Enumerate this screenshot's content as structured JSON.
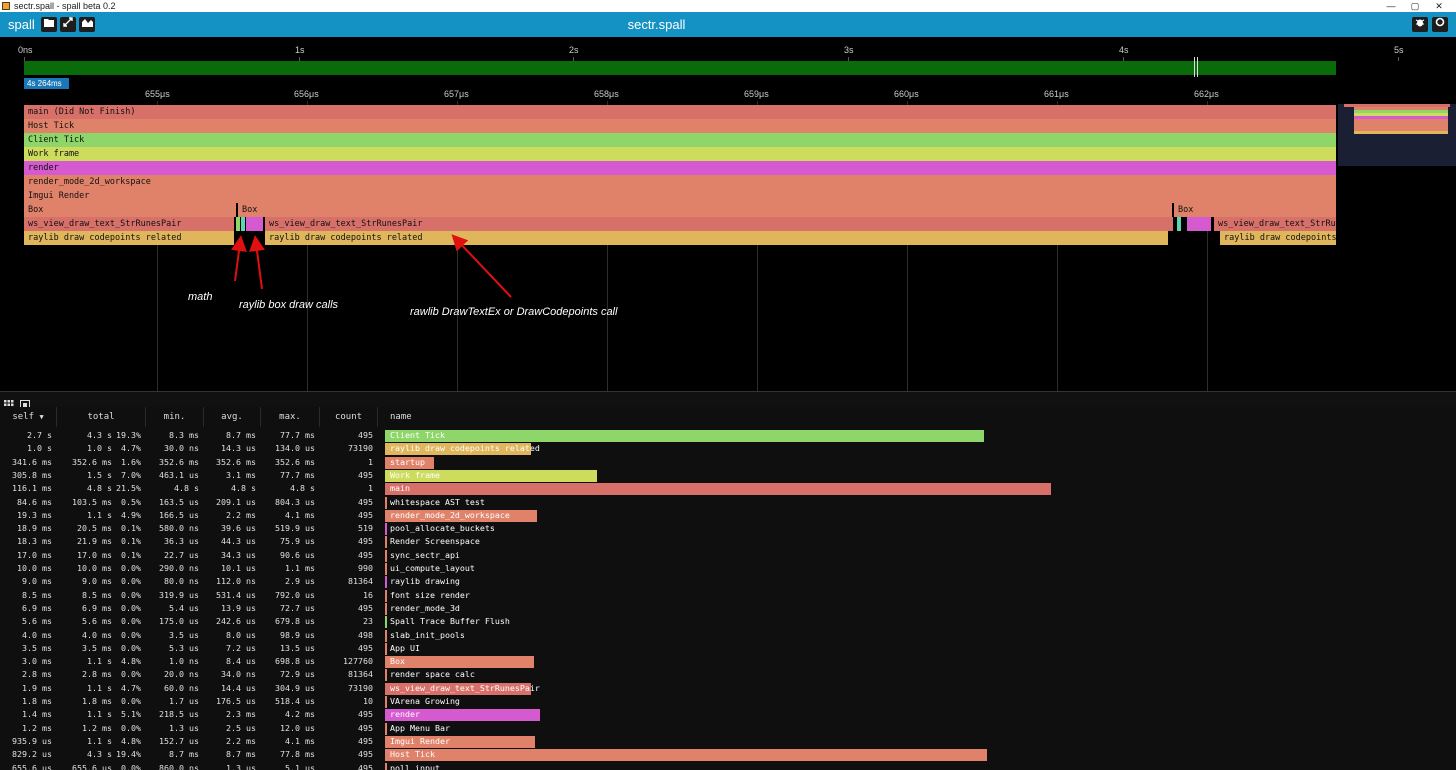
{
  "window": {
    "title": "sectr.spall - spall beta 0.2",
    "minimize": "—",
    "maximize": "▢",
    "close": "✕"
  },
  "app": {
    "name": "spall",
    "file_title": "sectr.spall"
  },
  "colors": {
    "accent": "#1592c4",
    "timeline_green": "#0a6b0a"
  },
  "timeline": {
    "top_ticks": [
      "0ns",
      "1s",
      "2s",
      "3s",
      "4s",
      "5s"
    ],
    "duration_badge": "4s 264ms",
    "mid_ticks": [
      "655μs",
      "656μs",
      "657μs",
      "658μs",
      "659μs",
      "660μs",
      "661μs",
      "662μs"
    ],
    "rows": [
      {
        "label": "main (Did Not Finish)",
        "color": "#d8706a"
      },
      {
        "label": "Host Tick",
        "color": "#e0826a"
      },
      {
        "label": "Client Tick",
        "color": "#8fd66a"
      },
      {
        "label": "Work frame",
        "color": "#cddc5c"
      },
      {
        "label": "render",
        "color": "#d55ad0"
      },
      {
        "label": "render_mode_2d_workspace",
        "color": "#e0826a"
      },
      {
        "label": "Imgui Render",
        "color": "#e0826a"
      }
    ],
    "box_row": {
      "label": "Box",
      "label_b": "Box",
      "label_c": "Box"
    },
    "ws_row": {
      "label_a": "ws_view_draw_text_StrRunesPair",
      "label_b": "ws_view_draw_text_StrRunesPair",
      "label_c": "ws_view_draw_text_StrRun…"
    },
    "raylib_row": {
      "label_a": "raylib draw codepoints related",
      "label_b": "raylib draw codepoints related",
      "label_c": "raylib draw codepoints…"
    },
    "annotations": {
      "math": "math",
      "box_calls": "raylib box draw calls",
      "text_call": "rawlib DrawTextEx or DrawCodepoints call"
    }
  },
  "stats": {
    "columns": {
      "self": "self",
      "total": "total",
      "min": "min.",
      "avg": "avg.",
      "max": "max.",
      "count": "count",
      "name": "name"
    },
    "rows": [
      {
        "self": "2.7 s",
        "total": "4.3 s",
        "pct": "19.3%",
        "min": "8.3 ms",
        "avg": "8.7 ms",
        "max": "77.7 ms",
        "count": "495",
        "name": "Client Tick",
        "bar": 0.565,
        "color": "#8fd66a"
      },
      {
        "self": "1.0 s",
        "total": "1.0 s",
        "pct": "4.7%",
        "min": "30.0 ns",
        "avg": "14.3 us",
        "max": "134.0 us",
        "count": "73190",
        "name": "raylib draw codepoints related",
        "bar": 0.138,
        "color": "#e0b65c"
      },
      {
        "self": "341.6 ms",
        "total": "352.6 ms",
        "pct": "1.6%",
        "min": "352.6 ms",
        "avg": "352.6 ms",
        "max": "352.6 ms",
        "count": "1",
        "name": "startup",
        "bar": 0.046,
        "color": "#e0826a"
      },
      {
        "self": "305.8 ms",
        "total": "1.5 s",
        "pct": "7.0%",
        "min": "463.1 us",
        "avg": "3.1 ms",
        "max": "77.7 ms",
        "count": "495",
        "name": "Work frame",
        "bar": 0.2,
        "color": "#cddc5c"
      },
      {
        "self": "116.1 ms",
        "total": "4.8 s",
        "pct": "21.5%",
        "min": "4.8 s",
        "avg": "4.8 s",
        "max": "4.8 s",
        "count": "1",
        "name": "main",
        "bar": 0.628,
        "color": "#d8706a"
      },
      {
        "self": "84.6 ms",
        "total": "103.5 ms",
        "pct": "0.5%",
        "min": "163.5 us",
        "avg": "209.1 us",
        "max": "804.3 us",
        "count": "495",
        "name": "whitespace AST test",
        "bar": 0.0,
        "color": "#e0826a"
      },
      {
        "self": "19.3 ms",
        "total": "1.1 s",
        "pct": "4.9%",
        "min": "166.5 us",
        "avg": "2.2 ms",
        "max": "4.1 ms",
        "count": "495",
        "name": "render_mode_2d_workspace",
        "bar": 0.143,
        "color": "#e0826a"
      },
      {
        "self": "18.9 ms",
        "total": "20.5 ms",
        "pct": "0.1%",
        "min": "580.0 ns",
        "avg": "39.6 us",
        "max": "519.9 us",
        "count": "519",
        "name": "pool_allocate_buckets",
        "bar": 0.002,
        "color": "#d55ad0"
      },
      {
        "self": "18.3 ms",
        "total": "21.9 ms",
        "pct": "0.1%",
        "min": "36.3 us",
        "avg": "44.3 us",
        "max": "75.9 us",
        "count": "495",
        "name": "Render Screenspace",
        "bar": 0.002,
        "color": "#e0826a"
      },
      {
        "self": "17.0 ms",
        "total": "17.0 ms",
        "pct": "0.1%",
        "min": "22.7 us",
        "avg": "34.3 us",
        "max": "90.6 us",
        "count": "495",
        "name": "sync_sectr_api",
        "bar": 0.002,
        "color": "#e0826a"
      },
      {
        "self": "10.0 ms",
        "total": "10.0 ms",
        "pct": "0.0%",
        "min": "290.0 ns",
        "avg": "10.1 us",
        "max": "1.1 ms",
        "count": "990",
        "name": "ui_compute_layout",
        "bar": 0.001,
        "color": "#e0826a"
      },
      {
        "self": "9.0 ms",
        "total": "9.0 ms",
        "pct": "0.0%",
        "min": "80.0 ns",
        "avg": "112.0 ns",
        "max": "2.9 us",
        "count": "81364",
        "name": "raylib drawing",
        "bar": 0.001,
        "color": "#d55ad0"
      },
      {
        "self": "8.5 ms",
        "total": "8.5 ms",
        "pct": "0.0%",
        "min": "319.9 us",
        "avg": "531.4 us",
        "max": "792.0 us",
        "count": "16",
        "name": "font size render",
        "bar": 0.001,
        "color": "#e0826a"
      },
      {
        "self": "6.9 ms",
        "total": "6.9 ms",
        "pct": "0.0%",
        "min": "5.4 us",
        "avg": "13.9 us",
        "max": "72.7 us",
        "count": "495",
        "name": "render_mode_3d",
        "bar": 0.001,
        "color": "#e0826a"
      },
      {
        "self": "5.6 ms",
        "total": "5.6 ms",
        "pct": "0.0%",
        "min": "175.0 us",
        "avg": "242.6 us",
        "max": "679.8 us",
        "count": "23",
        "name": "Spall Trace Buffer Flush",
        "bar": 0.001,
        "color": "#8fd66a"
      },
      {
        "self": "4.0 ms",
        "total": "4.0 ms",
        "pct": "0.0%",
        "min": "3.5 us",
        "avg": "8.0 us",
        "max": "98.9 us",
        "count": "498",
        "name": "slab_init_pools",
        "bar": 0.001,
        "color": "#e0826a"
      },
      {
        "self": "3.5 ms",
        "total": "3.5 ms",
        "pct": "0.0%",
        "min": "5.3 us",
        "avg": "7.2 us",
        "max": "13.5 us",
        "count": "495",
        "name": "App UI",
        "bar": 0.0,
        "color": "#e0826a"
      },
      {
        "self": "3.0 ms",
        "total": "1.1 s",
        "pct": "4.8%",
        "min": "1.0 ns",
        "avg": "8.4 us",
        "max": "698.8 us",
        "count": "127760",
        "name": "Box",
        "bar": 0.14,
        "color": "#e0826a"
      },
      {
        "self": "2.8 ms",
        "total": "2.8 ms",
        "pct": "0.0%",
        "min": "20.0 ns",
        "avg": "34.0 ns",
        "max": "72.9 us",
        "count": "81364",
        "name": "render space calc",
        "bar": 0.0,
        "color": "#e0826a"
      },
      {
        "self": "1.9 ms",
        "total": "1.1 s",
        "pct": "4.7%",
        "min": "60.0 ns",
        "avg": "14.4 us",
        "max": "304.9 us",
        "count": "73190",
        "name": "ws_view_draw_text_StrRunesPair",
        "bar": 0.138,
        "color": "#d8706a"
      },
      {
        "self": "1.8 ms",
        "total": "1.8 ms",
        "pct": "0.0%",
        "min": "1.7 us",
        "avg": "176.5 us",
        "max": "518.4 us",
        "count": "10",
        "name": "VArena Growing",
        "bar": 0.0,
        "color": "#e0826a"
      },
      {
        "self": "1.4 ms",
        "total": "1.1 s",
        "pct": "5.1%",
        "min": "218.5 us",
        "avg": "2.3 ms",
        "max": "4.2 ms",
        "count": "495",
        "name": "render",
        "bar": 0.146,
        "color": "#d55ad0"
      },
      {
        "self": "1.2 ms",
        "total": "1.2 ms",
        "pct": "0.0%",
        "min": "1.3 us",
        "avg": "2.5 us",
        "max": "12.0 us",
        "count": "495",
        "name": "App Menu Bar",
        "bar": 0.0,
        "color": "#e0826a"
      },
      {
        "self": "935.9 us",
        "total": "1.1 s",
        "pct": "4.8%",
        "min": "152.7 us",
        "avg": "2.2 ms",
        "max": "4.1 ms",
        "count": "495",
        "name": "Imgui Render",
        "bar": 0.141,
        "color": "#e0826a"
      },
      {
        "self": "829.2 us",
        "total": "4.3 s",
        "pct": "19.4%",
        "min": "8.7 ms",
        "avg": "8.7 ms",
        "max": "77.8 ms",
        "count": "495",
        "name": "Host Tick",
        "bar": 0.567,
        "color": "#e0826a"
      },
      {
        "self": "655.6 us",
        "total": "655.6 us",
        "pct": "0.0%",
        "min": "860.0 ns",
        "avg": "1.3 us",
        "max": "5.1 us",
        "count": "495",
        "name": "poll_input",
        "bar": 0.0,
        "color": "#e0826a"
      }
    ]
  }
}
